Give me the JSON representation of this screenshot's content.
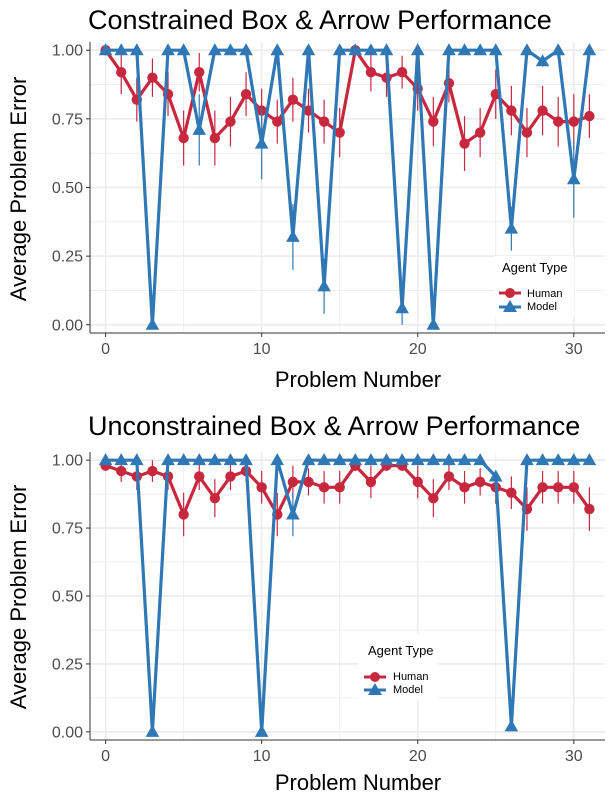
{
  "colors": {
    "human": "#C8283E",
    "model": "#2F78B5",
    "grid": "#EBEBEB",
    "axis": "#333333"
  },
  "chart_data": [
    {
      "type": "line",
      "title": "Constrained Box & Arrow Performance",
      "xlabel": "Problem Number",
      "ylabel": "Average Problem Error",
      "xlim": [
        -1,
        32
      ],
      "ylim": [
        -0.03,
        1.03
      ],
      "xticks": [
        0,
        10,
        20,
        30
      ],
      "xtick_labels": [
        "0",
        "10",
        "20",
        "30"
      ],
      "yticks": [
        0,
        0.25,
        0.5,
        0.75,
        1.0
      ],
      "ytick_labels": [
        "0.00",
        "0.25",
        "0.50",
        "0.75",
        "1.00"
      ],
      "grid": true,
      "legend": {
        "title": "Agent Type",
        "position": "right-bottom",
        "entries": [
          "Human",
          "Model"
        ]
      },
      "x": [
        0,
        1,
        2,
        3,
        4,
        5,
        6,
        7,
        8,
        9,
        10,
        11,
        12,
        13,
        14,
        15,
        16,
        17,
        18,
        19,
        20,
        21,
        22,
        23,
        24,
        25,
        26,
        27,
        28,
        29,
        30,
        31
      ],
      "series": [
        {
          "name": "Human",
          "marker": "circle",
          "values": [
            1.0,
            0.92,
            0.82,
            0.9,
            0.84,
            0.68,
            0.92,
            0.68,
            0.74,
            0.84,
            0.78,
            0.74,
            0.82,
            0.78,
            0.74,
            0.7,
            1.0,
            0.92,
            0.9,
            0.92,
            0.86,
            0.74,
            0.88,
            0.66,
            0.7,
            0.84,
            0.78,
            0.7,
            0.78,
            0.74,
            0.74,
            0.76
          ],
          "err": [
            0.0,
            0.08,
            0.08,
            0.07,
            0.08,
            0.1,
            0.07,
            0.1,
            0.09,
            0.08,
            0.08,
            0.08,
            0.08,
            0.08,
            0.08,
            0.09,
            0.0,
            0.07,
            0.07,
            0.06,
            0.08,
            0.09,
            0.07,
            0.1,
            0.09,
            0.09,
            0.09,
            0.09,
            0.09,
            0.09,
            0.1,
            0.08
          ]
        },
        {
          "name": "Model",
          "marker": "triangle",
          "values": [
            1.0,
            1.0,
            1.0,
            0.0,
            1.0,
            1.0,
            0.71,
            1.0,
            1.0,
            1.0,
            0.66,
            1.0,
            0.32,
            1.0,
            0.14,
            1.0,
            1.0,
            1.0,
            1.0,
            0.06,
            1.0,
            0.0,
            1.0,
            1.0,
            1.0,
            1.0,
            0.35,
            1.0,
            0.96,
            1.0,
            0.53,
            1.0
          ],
          "err": [
            0,
            0,
            0,
            0,
            0,
            0,
            0.13,
            0,
            0,
            0,
            0.13,
            0,
            0.12,
            0,
            0.1,
            0,
            0,
            0,
            0,
            0.06,
            0,
            0,
            0,
            0,
            0,
            0,
            0.08,
            0,
            0.02,
            0,
            0.14,
            0
          ]
        }
      ]
    },
    {
      "type": "line",
      "title": "Unconstrained Box & Arrow Performance",
      "xlabel": "Problem Number",
      "ylabel": "Average Problem Error",
      "xlim": [
        -1,
        32
      ],
      "ylim": [
        -0.03,
        1.03
      ],
      "xticks": [
        0,
        10,
        20,
        30
      ],
      "xtick_labels": [
        "0",
        "10",
        "20",
        "30"
      ],
      "yticks": [
        0,
        0.25,
        0.5,
        0.75,
        1.0
      ],
      "ytick_labels": [
        "0.00",
        "0.25",
        "0.50",
        "0.75",
        "1.00"
      ],
      "grid": true,
      "legend": {
        "title": "Agent Type",
        "position": "center-bottom",
        "entries": [
          "Human",
          "Model"
        ]
      },
      "x": [
        0,
        1,
        2,
        3,
        4,
        5,
        6,
        7,
        8,
        9,
        10,
        11,
        12,
        13,
        14,
        15,
        16,
        17,
        18,
        19,
        20,
        21,
        22,
        23,
        24,
        25,
        26,
        27,
        28,
        29,
        30,
        31
      ],
      "series": [
        {
          "name": "Human",
          "marker": "circle",
          "values": [
            0.98,
            0.96,
            0.94,
            0.96,
            0.94,
            0.8,
            0.94,
            0.86,
            0.94,
            0.96,
            0.9,
            0.8,
            0.92,
            0.92,
            0.9,
            0.9,
            0.98,
            0.92,
            0.98,
            0.98,
            0.92,
            0.86,
            0.94,
            0.9,
            0.92,
            0.9,
            0.88,
            0.82,
            0.9,
            0.9,
            0.9,
            0.82
          ],
          "err": [
            0.02,
            0.04,
            0.05,
            0.04,
            0.05,
            0.08,
            0.05,
            0.07,
            0.05,
            0.04,
            0.06,
            0.08,
            0.06,
            0.05,
            0.06,
            0.06,
            0.02,
            0.06,
            0.02,
            0.02,
            0.06,
            0.07,
            0.05,
            0.06,
            0.05,
            0.06,
            0.06,
            0.08,
            0.06,
            0.06,
            0.06,
            0.08
          ]
        },
        {
          "name": "Model",
          "marker": "triangle",
          "values": [
            1.0,
            1.0,
            1.0,
            0.0,
            1.0,
            1.0,
            1.0,
            1.0,
            1.0,
            1.0,
            0.0,
            1.0,
            0.8,
            1.0,
            1.0,
            1.0,
            1.0,
            1.0,
            1.0,
            1.0,
            1.0,
            1.0,
            1.0,
            1.0,
            1.0,
            0.94,
            0.02,
            1.0,
            1.0,
            1.0,
            1.0,
            1.0
          ],
          "err": [
            0,
            0,
            0,
            0,
            0,
            0,
            0,
            0,
            0,
            0,
            0,
            0,
            0.08,
            0,
            0,
            0,
            0,
            0,
            0,
            0,
            0,
            0,
            0,
            0,
            0,
            0.02,
            0.01,
            0,
            0,
            0,
            0,
            0
          ]
        }
      ]
    }
  ]
}
